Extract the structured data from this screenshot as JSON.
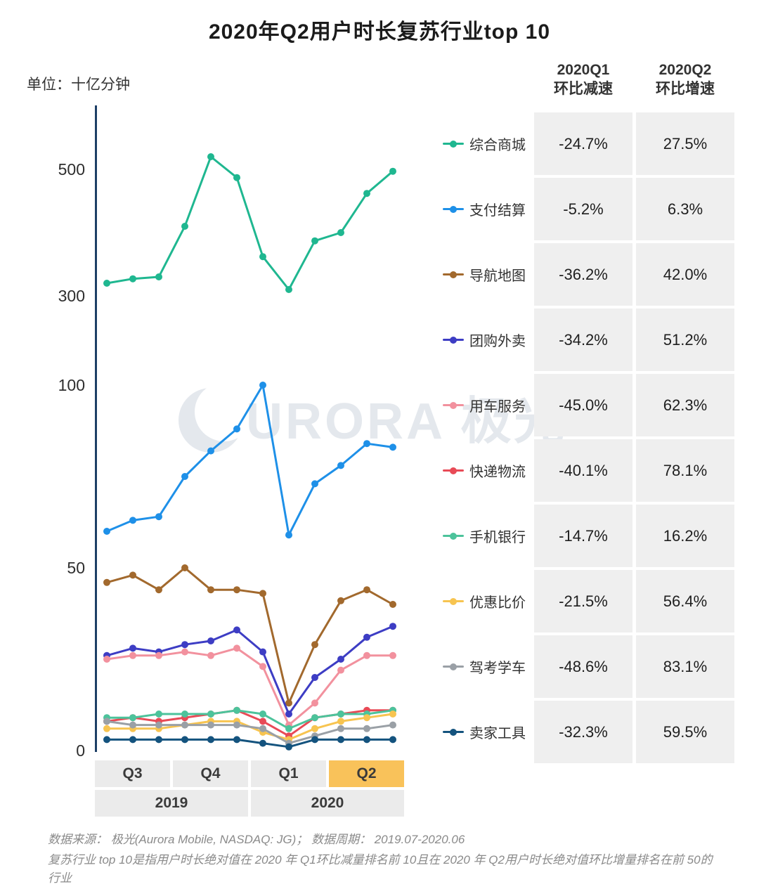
{
  "title": "2020年Q2用户时长复苏行业top 10",
  "unit_label": "单位：十亿分钟",
  "watermark": "URORA 极光",
  "table": {
    "col_headers": [
      {
        "line1": "2020Q1",
        "line2": "环比减速"
      },
      {
        "line1": "2020Q2",
        "line2": "环比增速"
      }
    ],
    "rows": [
      {
        "label": "综合商城",
        "color": "#1fb790",
        "q1": "-24.7%",
        "q2": "27.5%"
      },
      {
        "label": "支付结算",
        "color": "#1e90e8",
        "q1": "-5.2%",
        "q2": "6.3%"
      },
      {
        "label": "导航地图",
        "color": "#a2692d",
        "q1": "-36.2%",
        "q2": "42.0%"
      },
      {
        "label": "团购外卖",
        "color": "#3d3dc4",
        "q1": "-34.2%",
        "q2": "51.2%"
      },
      {
        "label": "用车服务",
        "color": "#f2919e",
        "q1": "-45.0%",
        "q2": "62.3%"
      },
      {
        "label": "快递物流",
        "color": "#e84a56",
        "q1": "-40.1%",
        "q2": "78.1%"
      },
      {
        "label": "手机银行",
        "color": "#4cc39b",
        "q1": "-14.7%",
        "q2": "16.2%"
      },
      {
        "label": "优惠比价",
        "color": "#f7c450",
        "q1": "-21.5%",
        "q2": "56.4%"
      },
      {
        "label": "驾考学车",
        "color": "#9aa0a6",
        "q1": "-48.6%",
        "q2": "83.1%"
      },
      {
        "label": "卖家工具",
        "color": "#14537e",
        "q1": "-32.3%",
        "q2": "59.5%"
      }
    ]
  },
  "chart_data": {
    "type": "line",
    "x_months": [
      "2019.07",
      "2019.08",
      "2019.09",
      "2019.10",
      "2019.11",
      "2019.12",
      "2020.01",
      "2020.02",
      "2020.03",
      "2020.04",
      "2020.05",
      "2020.06"
    ],
    "x_quarters": [
      "Q3",
      "Q4",
      "Q1",
      "Q2"
    ],
    "highlight_quarter_index": 3,
    "x_years": [
      "2019",
      "2020"
    ],
    "ylabel": "十亿分钟",
    "axis_break": true,
    "top_segment": {
      "range": [
        300,
        560
      ],
      "ticks": [
        500,
        300
      ]
    },
    "bottom_segment": {
      "range": [
        0,
        105
      ],
      "ticks": [
        100,
        50,
        0
      ]
    },
    "series": [
      {
        "name": "综合商城",
        "color": "#1fb790",
        "segment": "top",
        "values": [
          320,
          327,
          330,
          410,
          520,
          487,
          362,
          310,
          387,
          400,
          462,
          497
        ]
      },
      {
        "name": "支付结算",
        "color": "#1e90e8",
        "segment": "bottom",
        "values": [
          60,
          63,
          64,
          75,
          82,
          88,
          100,
          59,
          73,
          78,
          84,
          83
        ]
      },
      {
        "name": "导航地图",
        "color": "#a2692d",
        "segment": "bottom",
        "values": [
          46,
          48,
          44,
          50,
          44,
          44,
          43,
          13,
          29,
          41,
          44,
          40
        ]
      },
      {
        "name": "团购外卖",
        "color": "#3d3dc4",
        "segment": "bottom",
        "values": [
          26,
          28,
          27,
          29,
          30,
          33,
          27,
          10,
          20,
          25,
          31,
          34
        ]
      },
      {
        "name": "用车服务",
        "color": "#f2919e",
        "segment": "bottom",
        "values": [
          25,
          26,
          26,
          27,
          26,
          28,
          23,
          7,
          13,
          22,
          26,
          26
        ]
      },
      {
        "name": "快递物流",
        "color": "#e84a56",
        "segment": "bottom",
        "values": [
          8,
          9,
          8,
          9,
          10,
          11,
          8,
          4,
          9,
          10,
          11,
          11
        ]
      },
      {
        "name": "手机银行",
        "color": "#4cc39b",
        "segment": "bottom",
        "values": [
          9,
          9,
          10,
          10,
          10,
          11,
          10,
          6,
          9,
          10,
          10,
          11
        ]
      },
      {
        "name": "优惠比价",
        "color": "#f7c450",
        "segment": "bottom",
        "values": [
          6,
          6,
          6,
          7,
          8,
          8,
          5,
          3,
          6,
          8,
          9,
          10
        ]
      },
      {
        "name": "驾考学车",
        "color": "#9aa0a6",
        "segment": "bottom",
        "values": [
          8,
          7,
          7,
          7,
          7,
          7,
          6,
          2,
          4,
          6,
          6,
          7
        ]
      },
      {
        "name": "卖家工具",
        "color": "#14537e",
        "segment": "bottom",
        "values": [
          3,
          3,
          3,
          3,
          3,
          3,
          2,
          1,
          3,
          3,
          3,
          3
        ]
      }
    ]
  },
  "source_note": "数据来源： 极光(Aurora Mobile, NASDAQ: JG)； 数据周期： 2019.07-2020.06",
  "footnote": "复苏行业 top 10是指用户时长绝对值在 2020 年 Q1环比减量排名前 10且在 2020 年 Q2用户时长绝对值环比增量排名在前 50的 行业"
}
